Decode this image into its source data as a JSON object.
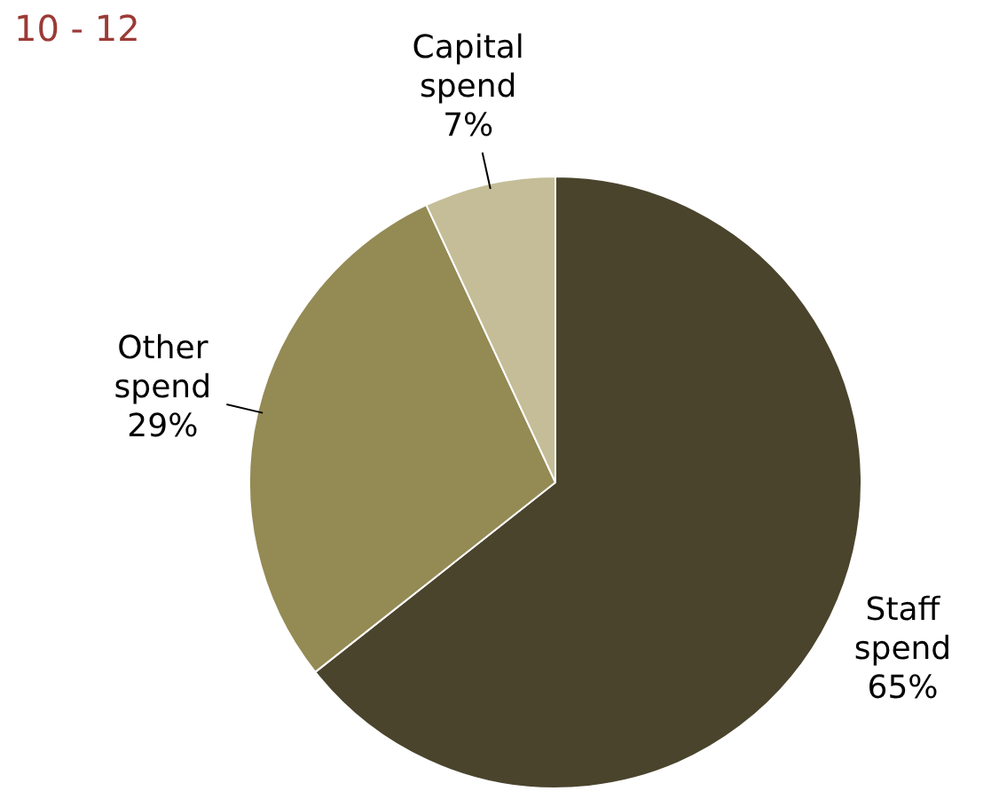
{
  "chart_data": {
    "type": "pie",
    "title": "10 - 12",
    "categories": [
      "Staff spend",
      "Other spend",
      "Capital spend"
    ],
    "values": [
      65,
      29,
      7
    ],
    "colors": [
      "#4a442d",
      "#948a54",
      "#c4bd97"
    ],
    "value_labels": [
      "65%",
      "29%",
      "7%"
    ],
    "legend": false
  }
}
